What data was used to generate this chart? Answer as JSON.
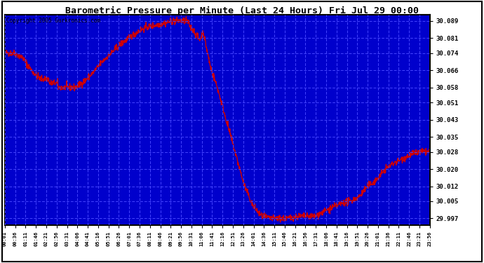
{
  "title": "Barometric Pressure per Minute (Last 24 Hours) Fri Jul 29 00:00",
  "copyright": "Copyright 2005 Gurkronics.com",
  "plot_bg_color": "#0000cc",
  "line_color": "#cc0000",
  "ytick_labels": [
    "29.997",
    "30.005",
    "30.012",
    "30.020",
    "30.028",
    "30.035",
    "30.043",
    "30.051",
    "30.058",
    "30.066",
    "30.074",
    "30.081",
    "30.089"
  ],
  "ytick_values": [
    29.997,
    30.005,
    30.012,
    30.02,
    30.028,
    30.035,
    30.043,
    30.051,
    30.058,
    30.066,
    30.074,
    30.081,
    30.089
  ],
  "ylim": [
    29.994,
    30.092
  ],
  "xtick_labels": [
    "00:01",
    "00:36",
    "01:11",
    "01:46",
    "02:21",
    "02:56",
    "03:31",
    "04:06",
    "04:41",
    "05:16",
    "05:51",
    "06:26",
    "07:01",
    "07:36",
    "08:11",
    "08:46",
    "09:21",
    "09:56",
    "10:31",
    "11:06",
    "11:41",
    "12:16",
    "12:51",
    "13:26",
    "14:01",
    "14:36",
    "15:11",
    "15:46",
    "16:21",
    "16:56",
    "17:31",
    "18:06",
    "18:41",
    "19:16",
    "19:51",
    "20:26",
    "21:01",
    "21:36",
    "22:11",
    "22:46",
    "23:21",
    "23:56"
  ],
  "outer_bg": "#ffffff"
}
